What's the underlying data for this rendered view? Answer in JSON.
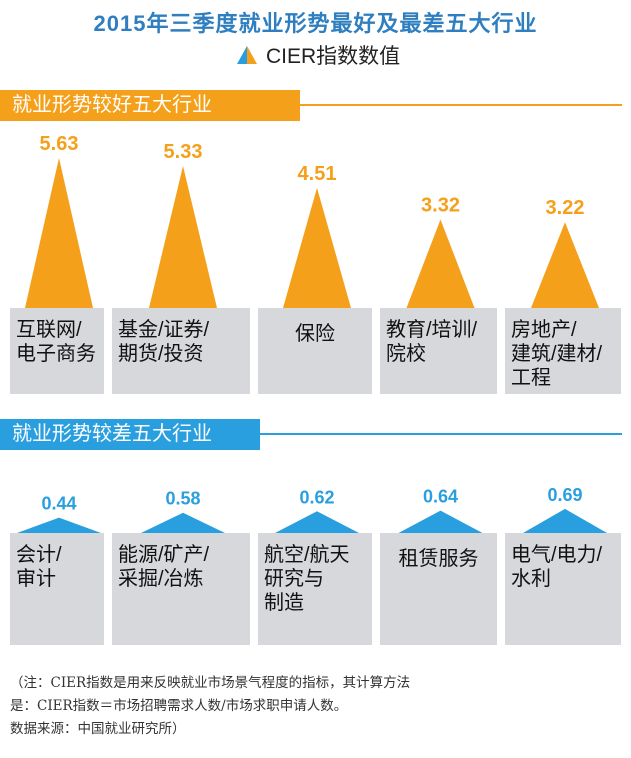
{
  "title": "2015年三季度就业形势最好及最差五大行业",
  "legend": {
    "label": "CIER指数数值"
  },
  "colors": {
    "best": "#f5a01a",
    "worst": "#2a9fe0",
    "title": "#2f7fc0",
    "box": "#d6d8db"
  },
  "best": {
    "heading": "就业形势较好五大行业"
  },
  "worst": {
    "heading": "就业形势较差五大行业"
  },
  "chart_data": [
    {
      "type": "bar",
      "name": "就业形势较好五大行业",
      "categories": [
        "互联网/电子商务",
        "基金/证券/期货/投资",
        "保险",
        "教育/培训/院校",
        "房地产/建筑/建材/工程"
      ],
      "category_lines": [
        [
          "互联网/",
          "电子商务"
        ],
        [
          "基金/证券/",
          "期货/投资"
        ],
        [
          "保险"
        ],
        [
          "教育/培训/",
          "院校"
        ],
        [
          "房地产/",
          "建筑/建材/",
          "工程"
        ]
      ],
      "values": [
        5.63,
        5.33,
        4.51,
        3.32,
        3.22
      ],
      "labels": [
        "5.63",
        "5.33",
        "4.51",
        "3.32",
        "3.22"
      ],
      "legend": "CIER指数数值"
    },
    {
      "type": "bar",
      "name": "就业形势较差五大行业",
      "categories": [
        "会计/审计",
        "能源/矿产/采掘/冶炼",
        "航空/航天研究与制造",
        "租赁服务",
        "电气/电力/水利"
      ],
      "category_lines": [
        [
          "会计/",
          "审计"
        ],
        [
          "能源/矿产/",
          "采掘/冶炼"
        ],
        [
          "航空/航天",
          "研究与",
          "制造"
        ],
        [
          "租赁服务"
        ],
        [
          "电气/电力/",
          "水利"
        ]
      ],
      "values": [
        0.44,
        0.58,
        0.62,
        0.64,
        0.69
      ],
      "labels": [
        "0.44",
        "0.58",
        "0.62",
        "0.64",
        "0.69"
      ],
      "legend": "CIER指数数值"
    }
  ],
  "footnote": {
    "lines": [
      "（注：CIER指数是用来反映就业市场景气程度的指标，其计算方法",
      "是：CIER指数＝市场招聘需求人数/市场求职申请人数。",
      "数据来源：中国就业研究所）"
    ]
  }
}
